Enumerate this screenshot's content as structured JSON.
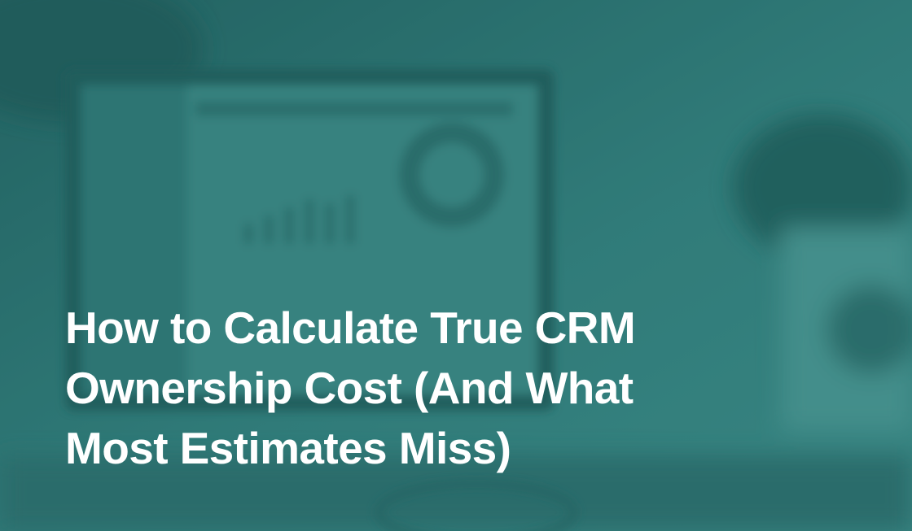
{
  "title_lines": [
    "How to Calculate True CRM",
    "Ownership Cost (And What",
    "Most Estimates Miss)"
  ]
}
